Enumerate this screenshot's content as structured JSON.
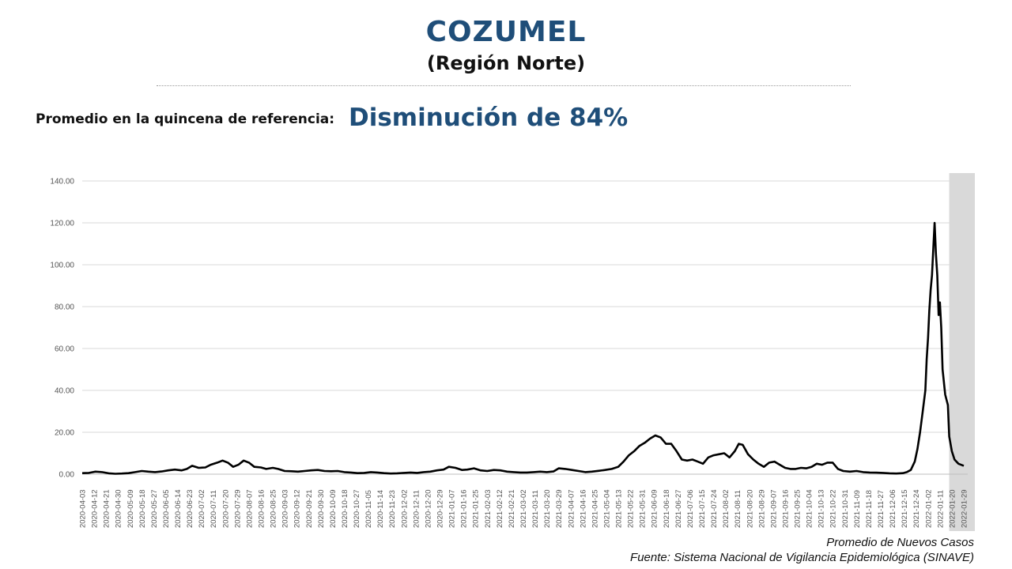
{
  "header": {
    "title": "COZUMEL",
    "subtitle": "(Región Norte)",
    "reference_label": "Promedio en la quincena de referencia:",
    "reference_value": "Disminución de 84%"
  },
  "footer": {
    "series_label": "Promedio de Nuevos Casos",
    "source": "Fuente: Sistema Nacional de Vigilancia Epidemiológica (SINAVE)"
  },
  "colors": {
    "title": "#1f4e79",
    "line": "#000000",
    "grid": "#d9d9d9",
    "highlight": "#d9d9d9"
  },
  "chart_data": {
    "type": "line",
    "ylim": [
      0,
      140
    ],
    "yticks": [
      "0.00",
      "20.00",
      "40.00",
      "60.00",
      "80.00",
      "100.00",
      "120.00",
      "140.00"
    ],
    "grid": "horizontal",
    "x_start": "2020-04-03",
    "x_end": "2022-02-01",
    "highlight_range": [
      "2022-01-18",
      "2022-02-01"
    ],
    "xticks": [
      "2020-04-03",
      "2020-04-12",
      "2020-04-21",
      "2020-04-30",
      "2020-05-09",
      "2020-05-18",
      "2020-05-27",
      "2020-06-05",
      "2020-06-14",
      "2020-06-23",
      "2020-07-02",
      "2020-07-11",
      "2020-07-20",
      "2020-07-29",
      "2020-08-07",
      "2020-08-16",
      "2020-08-25",
      "2020-09-03",
      "2020-09-12",
      "2020-09-21",
      "2020-09-30",
      "2020-10-09",
      "2020-10-18",
      "2020-10-27",
      "2020-11-05",
      "2020-11-14",
      "2020-11-23",
      "2020-12-02",
      "2020-12-11",
      "2020-12-20",
      "2020-12-29",
      "2021-01-07",
      "2021-01-16",
      "2021-01-25",
      "2021-02-03",
      "2021-02-12",
      "2021-02-21",
      "2021-03-02",
      "2021-03-11",
      "2021-03-20",
      "2021-03-29",
      "2021-04-07",
      "2021-04-16",
      "2021-04-25",
      "2021-05-04",
      "2021-05-13",
      "2021-05-22",
      "2021-05-31",
      "2021-06-09",
      "2021-06-18",
      "2021-06-27",
      "2021-07-06",
      "2021-07-15",
      "2021-07-24",
      "2021-08-02",
      "2021-08-11",
      "2021-08-20",
      "2021-08-29",
      "2021-09-07",
      "2021-09-16",
      "2021-09-25",
      "2021-10-04",
      "2021-10-13",
      "2021-10-22",
      "2021-10-31",
      "2021-11-09",
      "2021-11-18",
      "2021-11-27",
      "2021-12-06",
      "2021-12-15",
      "2021-12-24",
      "2022-01-02",
      "2022-01-11",
      "2022-01-20",
      "2022-01-29"
    ],
    "series": [
      {
        "points": [
          [
            "2020-04-03",
            0.5
          ],
          [
            "2020-04-08",
            0.6
          ],
          [
            "2020-04-13",
            1.2
          ],
          [
            "2020-04-18",
            1.0
          ],
          [
            "2020-04-23",
            0.4
          ],
          [
            "2020-04-28",
            0.2
          ],
          [
            "2020-05-03",
            0.3
          ],
          [
            "2020-05-08",
            0.5
          ],
          [
            "2020-05-13",
            1.0
          ],
          [
            "2020-05-18",
            1.5
          ],
          [
            "2020-05-23",
            1.2
          ],
          [
            "2020-05-28",
            1.0
          ],
          [
            "2020-06-02",
            1.3
          ],
          [
            "2020-06-07",
            1.8
          ],
          [
            "2020-06-12",
            2.2
          ],
          [
            "2020-06-17",
            1.8
          ],
          [
            "2020-06-21",
            2.5
          ],
          [
            "2020-06-25",
            4.0
          ],
          [
            "2020-06-30",
            3.0
          ],
          [
            "2020-07-05",
            3.2
          ],
          [
            "2020-07-09",
            4.5
          ],
          [
            "2020-07-14",
            5.5
          ],
          [
            "2020-07-18",
            6.5
          ],
          [
            "2020-07-22",
            5.5
          ],
          [
            "2020-07-26",
            3.5
          ],
          [
            "2020-07-30",
            4.5
          ],
          [
            "2020-08-03",
            6.5
          ],
          [
            "2020-08-07",
            5.5
          ],
          [
            "2020-08-11",
            3.5
          ],
          [
            "2020-08-16",
            3.2
          ],
          [
            "2020-08-20",
            2.5
          ],
          [
            "2020-08-25",
            3.0
          ],
          [
            "2020-08-29",
            2.5
          ],
          [
            "2020-09-03",
            1.5
          ],
          [
            "2020-09-08",
            1.4
          ],
          [
            "2020-09-13",
            1.2
          ],
          [
            "2020-09-18",
            1.5
          ],
          [
            "2020-09-23",
            1.8
          ],
          [
            "2020-09-28",
            2.0
          ],
          [
            "2020-10-03",
            1.5
          ],
          [
            "2020-10-08",
            1.4
          ],
          [
            "2020-10-13",
            1.5
          ],
          [
            "2020-10-18",
            1.0
          ],
          [
            "2020-10-23",
            0.8
          ],
          [
            "2020-10-28",
            0.5
          ],
          [
            "2020-11-02",
            0.6
          ],
          [
            "2020-11-07",
            1.0
          ],
          [
            "2020-11-12",
            0.8
          ],
          [
            "2020-11-17",
            0.5
          ],
          [
            "2020-11-22",
            0.3
          ],
          [
            "2020-11-27",
            0.4
          ],
          [
            "2020-12-02",
            0.6
          ],
          [
            "2020-12-07",
            0.8
          ],
          [
            "2020-12-12",
            0.6
          ],
          [
            "2020-12-17",
            1.0
          ],
          [
            "2020-12-22",
            1.2
          ],
          [
            "2020-12-27",
            1.8
          ],
          [
            "2021-01-01",
            2.2
          ],
          [
            "2021-01-05",
            3.5
          ],
          [
            "2021-01-10",
            3.0
          ],
          [
            "2021-01-15",
            2.0
          ],
          [
            "2021-01-19",
            2.2
          ],
          [
            "2021-01-24",
            2.8
          ],
          [
            "2021-01-29",
            1.8
          ],
          [
            "2021-02-03",
            1.5
          ],
          [
            "2021-02-08",
            2.0
          ],
          [
            "2021-02-13",
            1.8
          ],
          [
            "2021-02-18",
            1.2
          ],
          [
            "2021-02-23",
            1.0
          ],
          [
            "2021-02-28",
            0.8
          ],
          [
            "2021-03-05",
            0.8
          ],
          [
            "2021-03-10",
            1.0
          ],
          [
            "2021-03-15",
            1.2
          ],
          [
            "2021-03-20",
            1.0
          ],
          [
            "2021-03-25",
            1.3
          ],
          [
            "2021-03-29",
            2.8
          ],
          [
            "2021-04-03",
            2.5
          ],
          [
            "2021-04-08",
            2.0
          ],
          [
            "2021-04-13",
            1.5
          ],
          [
            "2021-04-18",
            1.0
          ],
          [
            "2021-04-23",
            1.2
          ],
          [
            "2021-04-28",
            1.6
          ],
          [
            "2021-05-03",
            2.0
          ],
          [
            "2021-05-08",
            2.5
          ],
          [
            "2021-05-13",
            3.5
          ],
          [
            "2021-05-17",
            6.0
          ],
          [
            "2021-05-21",
            9.0
          ],
          [
            "2021-05-25",
            11.0
          ],
          [
            "2021-05-29",
            13.5
          ],
          [
            "2021-06-02",
            15.0
          ],
          [
            "2021-06-06",
            17.0
          ],
          [
            "2021-06-10",
            18.5
          ],
          [
            "2021-06-14",
            17.5
          ],
          [
            "2021-06-18",
            14.5
          ],
          [
            "2021-06-22",
            14.5
          ],
          [
            "2021-06-26",
            11.0
          ],
          [
            "2021-06-30",
            7.0
          ],
          [
            "2021-07-04",
            6.5
          ],
          [
            "2021-07-08",
            7.0
          ],
          [
            "2021-07-12",
            6.0
          ],
          [
            "2021-07-16",
            5.0
          ],
          [
            "2021-07-20",
            8.0
          ],
          [
            "2021-07-24",
            9.0
          ],
          [
            "2021-07-28",
            9.5
          ],
          [
            "2021-08-01",
            10.0
          ],
          [
            "2021-08-05",
            8.0
          ],
          [
            "2021-08-09",
            11.0
          ],
          [
            "2021-08-12",
            14.5
          ],
          [
            "2021-08-15",
            14.0
          ],
          [
            "2021-08-19",
            9.5
          ],
          [
            "2021-08-23",
            7.0
          ],
          [
            "2021-08-27",
            5.0
          ],
          [
            "2021-08-31",
            3.5
          ],
          [
            "2021-09-04",
            5.5
          ],
          [
            "2021-09-08",
            6.0
          ],
          [
            "2021-09-12",
            4.5
          ],
          [
            "2021-09-16",
            3.0
          ],
          [
            "2021-09-20",
            2.5
          ],
          [
            "2021-09-24",
            2.5
          ],
          [
            "2021-09-28",
            3.0
          ],
          [
            "2021-10-02",
            2.8
          ],
          [
            "2021-10-06",
            3.5
          ],
          [
            "2021-10-10",
            5.0
          ],
          [
            "2021-10-14",
            4.5
          ],
          [
            "2021-10-18",
            5.5
          ],
          [
            "2021-10-22",
            5.5
          ],
          [
            "2021-10-26",
            2.5
          ],
          [
            "2021-10-30",
            1.5
          ],
          [
            "2021-11-04",
            1.2
          ],
          [
            "2021-11-09",
            1.5
          ],
          [
            "2021-11-14",
            1.0
          ],
          [
            "2021-11-19",
            0.8
          ],
          [
            "2021-11-24",
            0.7
          ],
          [
            "2021-11-29",
            0.6
          ],
          [
            "2021-12-04",
            0.4
          ],
          [
            "2021-12-09",
            0.3
          ],
          [
            "2021-12-14",
            0.5
          ],
          [
            "2021-12-17",
            1.0
          ],
          [
            "2021-12-20",
            2.0
          ],
          [
            "2021-12-23",
            6.0
          ],
          [
            "2021-12-25",
            12.0
          ],
          [
            "2021-12-27",
            20.0
          ],
          [
            "2021-12-29",
            30.0
          ],
          [
            "2021-12-31",
            40.0
          ],
          [
            "2022-01-01",
            55.0
          ],
          [
            "2022-01-02",
            65.0
          ],
          [
            "2022-01-03",
            78.0
          ],
          [
            "2022-01-04",
            88.0
          ],
          [
            "2022-01-05",
            95.0
          ],
          [
            "2022-01-06",
            108.0
          ],
          [
            "2022-01-07",
            120.0
          ],
          [
            "2022-01-08",
            105.0
          ],
          [
            "2022-01-09",
            95.0
          ],
          [
            "2022-01-10",
            76.0
          ],
          [
            "2022-01-11",
            82.0
          ],
          [
            "2022-01-12",
            70.0
          ],
          [
            "2022-01-13",
            50.0
          ],
          [
            "2022-01-15",
            38.0
          ],
          [
            "2022-01-17",
            33.0
          ],
          [
            "2022-01-18",
            18.0
          ],
          [
            "2022-01-20",
            11.0
          ],
          [
            "2022-01-22",
            7.0
          ],
          [
            "2022-01-25",
            5.0
          ],
          [
            "2022-01-29",
            4.0
          ]
        ]
      }
    ]
  }
}
